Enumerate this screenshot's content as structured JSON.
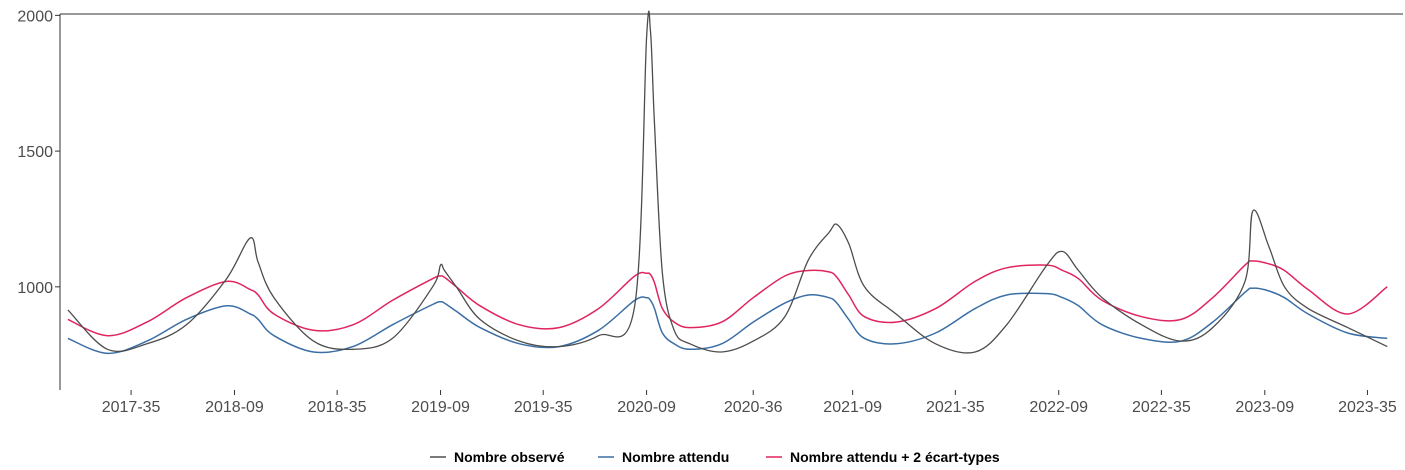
{
  "chart_data": {
    "type": "line",
    "title": "",
    "xlabel": "",
    "ylabel": "",
    "x_axis_format": "année-semaine",
    "x": [
      "2017-19",
      "2017-29",
      "2017-39",
      "2017-49",
      "2018-07",
      "2018-13",
      "2018-15",
      "2018-19",
      "2018-29",
      "2018-39",
      "2018-49",
      "2019-07",
      "2019-09",
      "2019-10",
      "2019-13",
      "2019-19",
      "2019-29",
      "2019-39",
      "2019-49",
      "2020-06",
      "2020-09",
      "2020-10",
      "2020-11",
      "2020-13",
      "2020-16",
      "2020-20",
      "2020-28",
      "2020-36",
      "2020-44",
      "2020-50",
      "2021-03",
      "2021-05",
      "2021-08",
      "2021-12",
      "2021-20",
      "2021-30",
      "2021-40",
      "2021-48",
      "2022-06",
      "2022-10",
      "2022-14",
      "2022-20",
      "2022-30",
      "2022-40",
      "2022-48",
      "2023-04",
      "2023-06",
      "2023-10",
      "2023-14",
      "2023-20",
      "2023-30",
      "2023-40"
    ],
    "ylim": [
      620,
      2005
    ],
    "y_ticks": [
      1000,
      1500,
      2000
    ],
    "x_tick_labels": [
      "2017-35",
      "2018-09",
      "2018-35",
      "2019-09",
      "2019-35",
      "2020-09",
      "2020-36",
      "2021-09",
      "2021-35",
      "2022-09",
      "2022-35",
      "2023-09",
      "2023-35"
    ],
    "series": [
      {
        "name": "Nombre observé",
        "color": "#4d4d4d",
        "values": [
          915,
          770,
          790,
          860,
          1030,
          1180,
          1090,
          960,
          800,
          770,
          810,
          1000,
          1080,
          1060,
          1000,
          880,
          800,
          780,
          820,
          930,
          1920,
          1940,
          1600,
          1050,
          840,
          790,
          760,
          800,
          890,
          1100,
          1200,
          1230,
          1160,
          1000,
          900,
          790,
          760,
          860,
          1080,
          1130,
          1060,
          960,
          860,
          800,
          850,
          1020,
          1280,
          1150,
          1000,
          920,
          850,
          780
        ]
      },
      {
        "name": "Nombre attendu",
        "color": "#3a6ea5",
        "values": [
          810,
          755,
          800,
          880,
          930,
          900,
          880,
          820,
          760,
          780,
          860,
          935,
          945,
          940,
          910,
          850,
          790,
          780,
          840,
          950,
          960,
          950,
          920,
          830,
          790,
          770,
          790,
          870,
          940,
          970,
          960,
          940,
          880,
          810,
          790,
          830,
          920,
          970,
          975,
          960,
          930,
          860,
          810,
          800,
          870,
          980,
          995,
          985,
          960,
          900,
          830,
          810
        ]
      },
      {
        "name": "Nombre attendu  + 2 écart-types",
        "color": "#e0245e",
        "values": [
          880,
          820,
          870,
          960,
          1020,
          990,
          970,
          900,
          840,
          860,
          950,
          1030,
          1040,
          1035,
          1000,
          930,
          860,
          850,
          920,
          1040,
          1050,
          1045,
          1015,
          920,
          870,
          850,
          870,
          960,
          1040,
          1060,
          1055,
          1035,
          970,
          890,
          870,
          920,
          1020,
          1070,
          1080,
          1060,
          1030,
          950,
          890,
          880,
          960,
          1080,
          1095,
          1085,
          1060,
          990,
          900,
          1000
        ]
      }
    ],
    "grid": false,
    "legend_position": "bottom"
  }
}
